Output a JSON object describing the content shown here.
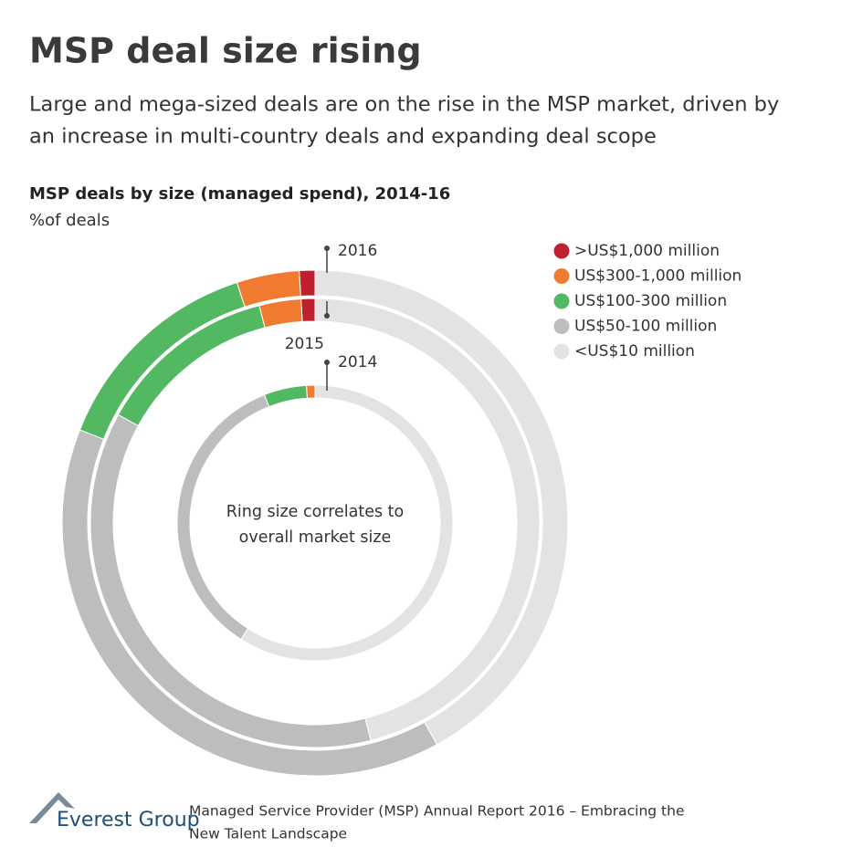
{
  "title": "MSP deal size rising",
  "subtitle": [
    "Large and mega-sized deals are on the rise in the MSP market, driven by",
    "an increase in multi-country deals and expanding deal scope"
  ],
  "chart_data": {
    "type": "donut",
    "title": "MSP deals by size (managed spend), 2014-16",
    "unit": "%of deals",
    "annotation": [
      "Ring size correlates to",
      "overall market size"
    ],
    "categories": [
      "2014",
      "2015",
      "2016"
    ],
    "series": [
      {
        "name": ">US$1,000 million",
        "color": "#c0202e",
        "values": [
          0,
          1,
          1
        ]
      },
      {
        "name": "US$300-1,000 million",
        "color": "#f07b30",
        "values": [
          1,
          3,
          4
        ]
      },
      {
        "name": "US$100-300 million",
        "color": "#52b862",
        "values": [
          5,
          13,
          14
        ]
      },
      {
        "name": "US$50-100 million",
        "color": "#bdbdbd",
        "values": [
          35,
          37,
          39
        ]
      },
      {
        "name": "<US$10 million",
        "color": "#e3e3e3",
        "values": [
          59,
          46,
          42
        ]
      }
    ]
  },
  "footer": {
    "logo": "Everest Group",
    "source": [
      "Managed Service Provider (MSP) Annual Report 2016 – Embracing the",
      "New Talent Landscape"
    ]
  }
}
